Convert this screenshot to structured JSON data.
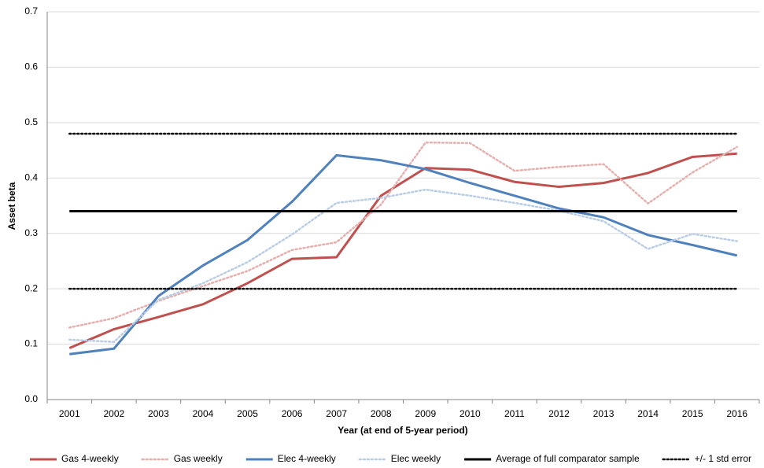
{
  "chart_data": {
    "type": "line",
    "x_label": "Year (at end of 5-year period)",
    "y_label": "Asset beta",
    "categories": [
      "2001",
      "2002",
      "2003",
      "2004",
      "2005",
      "2006",
      "2007",
      "2008",
      "2009",
      "2010",
      "2011",
      "2012",
      "2013",
      "2014",
      "2015",
      "2016"
    ],
    "ylim": [
      0,
      0.7
    ],
    "yticks": [
      {
        "value": 0,
        "label": "0.0"
      },
      {
        "value": 0.1,
        "label": "0.1"
      },
      {
        "value": 0.2,
        "label": "0.2"
      },
      {
        "value": 0.3,
        "label": "0.3"
      },
      {
        "value": 0.4,
        "label": "0.4"
      },
      {
        "value": 0.5,
        "label": "0.5"
      },
      {
        "value": 0.6,
        "label": "0.6"
      },
      {
        "value": 0.7,
        "label": "0.7"
      }
    ],
    "grid": true,
    "legend": "bottom",
    "series": [
      {
        "name": "Gas 4-weekly",
        "color": "#c0504d",
        "dash": "solid",
        "values": [
          0.093,
          0.127,
          0.149,
          0.172,
          0.21,
          0.254,
          0.257,
          0.368,
          0.418,
          0.415,
          0.393,
          0.384,
          0.391,
          0.409,
          0.438,
          0.444
        ]
      },
      {
        "name": "Gas weekly",
        "color": "#e6b0ae",
        "dash": "dotted",
        "values": [
          0.13,
          0.147,
          0.178,
          0.205,
          0.232,
          0.27,
          0.284,
          0.352,
          0.464,
          0.463,
          0.413,
          0.42,
          0.425,
          0.354,
          0.41,
          0.456
        ]
      },
      {
        "name": "Elec 4-weekly",
        "color": "#4f81bd",
        "dash": "solid",
        "values": [
          0.082,
          0.092,
          0.187,
          0.242,
          0.288,
          0.357,
          0.441,
          0.432,
          0.416,
          0.391,
          0.368,
          0.345,
          0.329,
          0.297,
          0.279,
          0.26
        ]
      },
      {
        "name": "Elec weekly",
        "color": "#b9cde5",
        "dash": "dotted",
        "values": [
          0.108,
          0.104,
          0.18,
          0.21,
          0.248,
          0.298,
          0.355,
          0.364,
          0.379,
          0.368,
          0.355,
          0.341,
          0.322,
          0.272,
          0.299,
          0.286
        ]
      },
      {
        "name": "Average of full comparator sample",
        "color": "#000000",
        "dash": "solid",
        "values": [
          0.34,
          0.34,
          0.34,
          0.34,
          0.34,
          0.34,
          0.34,
          0.34,
          0.34,
          0.34,
          0.34,
          0.34,
          0.34,
          0.34,
          0.34,
          0.34
        ]
      },
      {
        "name": "+/- 1 std error",
        "color": "#000000",
        "dash": "dotted",
        "values": [
          0.48,
          0.48,
          0.48,
          0.48,
          0.48,
          0.48,
          0.48,
          0.48,
          0.48,
          0.48,
          0.48,
          0.48,
          0.48,
          0.48,
          0.48,
          0.48
        ],
        "lower": [
          0.2,
          0.2,
          0.2,
          0.2,
          0.2,
          0.2,
          0.2,
          0.2,
          0.2,
          0.2,
          0.2,
          0.2,
          0.2,
          0.2,
          0.2,
          0.2
        ]
      }
    ]
  }
}
